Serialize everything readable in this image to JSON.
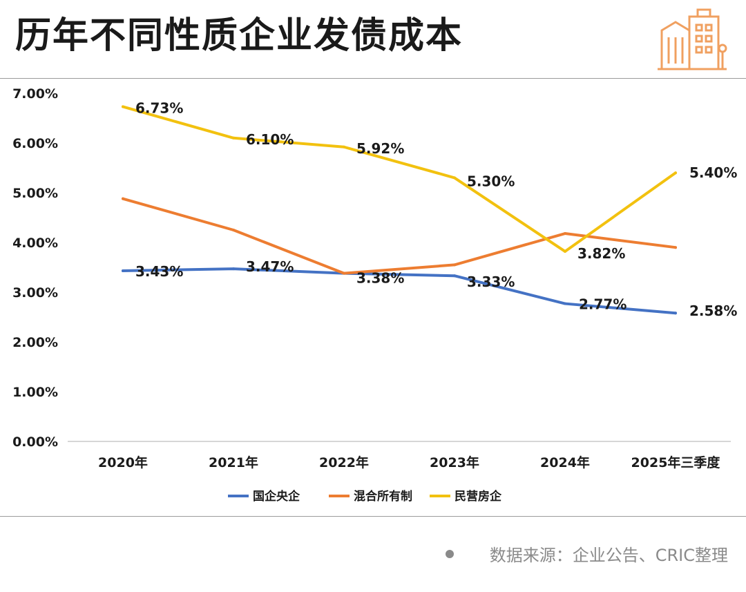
{
  "header": {
    "title": "历年不同性质企业发债成本"
  },
  "footer": {
    "source": "数据来源：企业公告、CRIC整理"
  },
  "colors": {
    "series_1": "#4472c4",
    "series_2": "#ed7d31",
    "series_3": "#f2c10f",
    "logo": "#f0a060"
  },
  "chart_data": {
    "type": "line",
    "title": "历年不同性质企业发债成本",
    "xlabel": "",
    "ylabel": "",
    "categories": [
      "2020年",
      "2021年",
      "2022年",
      "2023年",
      "2024年",
      "2025年三季度"
    ],
    "ylim": [
      0,
      7
    ],
    "yticks": [
      "0.00%",
      "1.00%",
      "2.00%",
      "3.00%",
      "4.00%",
      "5.00%",
      "6.00%",
      "7.00%"
    ],
    "grid": false,
    "legend": "bottom",
    "series": [
      {
        "name": "国企央企",
        "values": [
          3.43,
          3.47,
          3.38,
          3.33,
          2.77,
          2.58
        ],
        "labels": [
          "3.43%",
          "3.47%",
          "3.38%",
          "3.33%",
          "2.77%",
          "2.58%"
        ]
      },
      {
        "name": "混合所有制",
        "values": [
          4.88,
          4.25,
          3.38,
          3.55,
          4.18,
          3.9
        ],
        "labels": []
      },
      {
        "name": "民营房企",
        "values": [
          6.73,
          6.1,
          5.92,
          5.3,
          3.82,
          5.4
        ],
        "labels": [
          "6.73%",
          "6.10%",
          "5.92%",
          "5.30%",
          "3.82%",
          "5.40%"
        ]
      }
    ]
  }
}
